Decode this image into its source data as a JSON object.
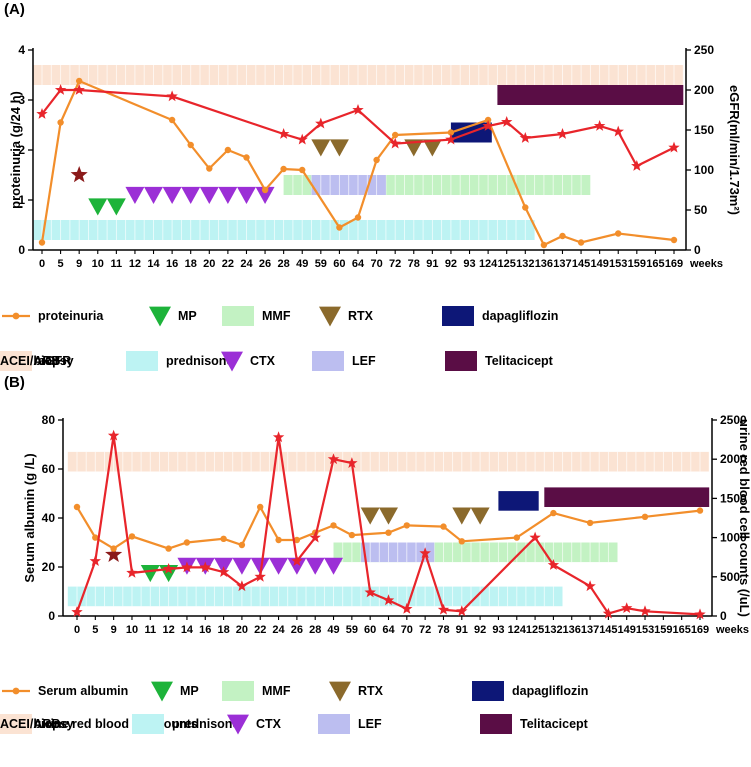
{
  "figure": {
    "panel_a_label": "(A)",
    "panel_b_label": "(B)",
    "x_unit_label": "weeks",
    "colors": {
      "proteinuria": "#f28e2b",
      "egfr": "#e8252b",
      "urine_rbc": "#e8252b",
      "albumin": "#f28e2b",
      "mp": "#1db33a",
      "ctx": "#9b2fd6",
      "rtx": "#8b6a2c",
      "renal_biopsy": "#8b1a1a",
      "prednisone": "#bdf3f3",
      "mmf": "#c3f2c3",
      "lef": "#bcbef0",
      "dapagliflozin": "#0d1777",
      "telitacicept": "#5a0d45",
      "acei_arb": "#fbe3d3"
    }
  },
  "chart_data": [
    {
      "type": "line",
      "panel": "A",
      "categories": [
        "0",
        "5",
        "9",
        "10",
        "11",
        "12",
        "14",
        "16",
        "18",
        "20",
        "22",
        "24",
        "26",
        "28",
        "49",
        "59",
        "60",
        "64",
        "70",
        "72",
        "78",
        "91",
        "92",
        "93",
        "124",
        "125",
        "132",
        "136",
        "137",
        "145",
        "149",
        "153",
        "159",
        "165",
        "169"
      ],
      "xlabel": "weeks",
      "ylabel": "proteinuria (g/24 h)",
      "y2label": "eGFR(ml/min/1.73m²)",
      "ylim": [
        0,
        4
      ],
      "y2lim": [
        0,
        250
      ],
      "yticks": [
        0,
        1,
        2,
        3,
        4
      ],
      "y2ticks": [
        0,
        50,
        100,
        150,
        200,
        250
      ],
      "series": [
        {
          "name": "proteinuria",
          "axis": "left",
          "marker": "dot",
          "points": [
            [
              0,
              0.15
            ],
            [
              1,
              2.55
            ],
            [
              2,
              3.38
            ],
            [
              7,
              2.6
            ],
            [
              8,
              2.1
            ],
            [
              9,
              1.63
            ],
            [
              10,
              2.0
            ],
            [
              11,
              1.85
            ],
            [
              12,
              1.2
            ],
            [
              13,
              1.62
            ],
            [
              14,
              1.6
            ],
            [
              16,
              0.45
            ],
            [
              17,
              0.65
            ],
            [
              18,
              1.8
            ],
            [
              19,
              2.3
            ],
            [
              22,
              2.35
            ],
            [
              24,
              2.6
            ],
            [
              26,
              0.85
            ],
            [
              27,
              0.1
            ],
            [
              28,
              0.28
            ],
            [
              29,
              0.15
            ],
            [
              31,
              0.33
            ],
            [
              34,
              0.2
            ]
          ]
        },
        {
          "name": "eGFR",
          "axis": "right",
          "marker": "star",
          "points": [
            [
              0,
              170
            ],
            [
              1,
              200
            ],
            [
              2,
              200
            ],
            [
              7,
              192
            ],
            [
              13,
              145
            ],
            [
              14,
              138
            ],
            [
              15,
              158
            ],
            [
              17,
              175
            ],
            [
              19,
              133
            ],
            [
              22,
              138
            ],
            [
              24,
              155
            ],
            [
              25,
              160
            ],
            [
              26,
              140
            ],
            [
              28,
              145
            ],
            [
              30,
              155
            ],
            [
              31,
              148
            ],
            [
              32,
              105
            ],
            [
              34,
              128
            ]
          ]
        }
      ],
      "events": [
        {
          "name": "renal biopsy",
          "marker": "star",
          "at": 2,
          "value": 1.5
        },
        {
          "name": "MP",
          "marker": "triangle-down",
          "at": [
            3,
            4
          ],
          "value": 0.87
        },
        {
          "name": "CTX",
          "marker": "triangle-down",
          "at": [
            5,
            6,
            7,
            8,
            9,
            10,
            11,
            12
          ],
          "value": 1.1
        },
        {
          "name": "RTX",
          "marker": "triangle-down",
          "at": [
            15,
            16,
            20,
            21
          ],
          "value": 2.05
        }
      ],
      "treatment_bars": [
        {
          "name": "prednisone",
          "from": -0.5,
          "to": 26.5,
          "y": [
            0.2,
            0.6
          ]
        },
        {
          "name": "MMF",
          "from": 13,
          "to": 29.5,
          "y": [
            1.1,
            1.5
          ]
        },
        {
          "name": "LEF",
          "from": 14.5,
          "to": 18.5,
          "y": [
            1.1,
            1.5
          ]
        },
        {
          "name": "dapagliflozin",
          "from": 22,
          "to": 24.2,
          "y": [
            2.15,
            2.55
          ]
        },
        {
          "name": "Telitacicept",
          "from": 24.5,
          "to": 34.5,
          "y": [
            2.9,
            3.3
          ]
        },
        {
          "name": "ACEI/ARB",
          "from": -0.5,
          "to": 34.5,
          "y": [
            3.3,
            3.7
          ]
        }
      ],
      "legend": [
        {
          "key": "proteinuria",
          "label": "proteinuria",
          "symbol": "line-dot"
        },
        {
          "key": "mp",
          "label": "MP",
          "symbol": "triangle"
        },
        {
          "key": "mmf",
          "label": "MMF",
          "symbol": "box"
        },
        {
          "key": "rtx",
          "label": "RTX",
          "symbol": "triangle"
        },
        {
          "key": "dapagliflozin",
          "label": "dapagliflozin",
          "symbol": "box"
        },
        {
          "key": "egfr",
          "label": "eGFR",
          "symbol": "line-star"
        },
        {
          "key": "prednisone",
          "label": "prednisone",
          "symbol": "box"
        },
        {
          "key": "ctx",
          "label": "CTX",
          "symbol": "triangle"
        },
        {
          "key": "lef",
          "label": "LEF",
          "symbol": "box"
        },
        {
          "key": "telitacicept",
          "label": "Telitacicept",
          "symbol": "box"
        },
        {
          "key": "renal_biopsy",
          "label": "renal biopsy",
          "symbol": "star"
        },
        {
          "key": "acei_arb",
          "label": "ACEI/ARB",
          "symbol": "box"
        }
      ]
    },
    {
      "type": "line",
      "panel": "B",
      "categories": [
        "0",
        "5",
        "9",
        "10",
        "11",
        "12",
        "14",
        "16",
        "18",
        "20",
        "22",
        "24",
        "26",
        "28",
        "49",
        "59",
        "60",
        "64",
        "70",
        "72",
        "78",
        "91",
        "92",
        "93",
        "124",
        "125",
        "132",
        "136",
        "137",
        "145",
        "149",
        "153",
        "159",
        "165",
        "169"
      ],
      "xlabel": "weeks",
      "ylabel": "Serum albumin (g /L)",
      "y2label": "urine red blood cell counts (/uL)",
      "ylim": [
        0,
        80
      ],
      "y2lim": [
        0,
        2500
      ],
      "yticks": [
        0,
        20,
        40,
        60,
        80
      ],
      "y2ticks": [
        0,
        500,
        1000,
        1500,
        2000,
        2500
      ],
      "series": [
        {
          "name": "Serum albumin",
          "axis": "left",
          "marker": "dot",
          "points": [
            [
              0,
              44.5
            ],
            [
              1,
              32
            ],
            [
              2,
              27.5
            ],
            [
              3,
              32.5
            ],
            [
              5,
              27.5
            ],
            [
              6,
              30
            ],
            [
              8,
              31.5
            ],
            [
              9,
              29
            ],
            [
              10,
              44.5
            ],
            [
              11,
              31
            ],
            [
              12,
              31
            ],
            [
              13,
              34
            ],
            [
              14,
              37
            ],
            [
              15,
              33
            ],
            [
              17,
              34
            ],
            [
              18,
              37
            ],
            [
              20,
              36.5
            ],
            [
              21,
              30.5
            ],
            [
              24,
              32
            ],
            [
              26,
              42
            ],
            [
              28,
              38
            ],
            [
              31,
              40.5
            ],
            [
              34,
              43
            ]
          ]
        },
        {
          "name": "urine red blood cell counts",
          "axis": "right",
          "marker": "star",
          "points": [
            [
              0,
              50
            ],
            [
              1,
              700
            ],
            [
              2,
              2300
            ],
            [
              3,
              550
            ],
            [
              5,
              600
            ],
            [
              6,
              620
            ],
            [
              7,
              620
            ],
            [
              8,
              560
            ],
            [
              9,
              380
            ],
            [
              10,
              500
            ],
            [
              11,
              2280
            ],
            [
              12,
              700
            ],
            [
              13,
              1000
            ],
            [
              14,
              2000
            ],
            [
              15,
              1950
            ],
            [
              16,
              300
            ],
            [
              17,
              200
            ],
            [
              18,
              90
            ],
            [
              19,
              800
            ],
            [
              20,
              80
            ],
            [
              21,
              60
            ],
            [
              25,
              1000
            ],
            [
              26,
              650
            ],
            [
              28,
              380
            ],
            [
              29,
              30
            ],
            [
              30,
              100
            ],
            [
              31,
              60
            ],
            [
              34,
              20
            ]
          ]
        }
      ],
      "events": [
        {
          "name": "renal biopsy",
          "marker": "star",
          "at": 2,
          "value": 25
        },
        {
          "name": "MP",
          "marker": "triangle-down",
          "at": [
            4,
            5
          ],
          "value": 17.5
        },
        {
          "name": "CTX",
          "marker": "triangle-down",
          "at": [
            6,
            7,
            8,
            9,
            10,
            11,
            12,
            13,
            14
          ],
          "value": 20.5
        },
        {
          "name": "RTX",
          "marker": "triangle-down",
          "at": [
            16,
            17,
            21,
            22
          ],
          "value": 41
        }
      ],
      "treatment_bars": [
        {
          "name": "prednisone",
          "from": -0.5,
          "to": 26.5,
          "y": [
            4,
            12
          ]
        },
        {
          "name": "MMF",
          "from": 14,
          "to": 29.5,
          "y": [
            22,
            30
          ]
        },
        {
          "name": "LEF",
          "from": 15.5,
          "to": 19.5,
          "y": [
            22,
            30
          ]
        },
        {
          "name": "dapagliflozin",
          "from": 23,
          "to": 25.2,
          "y": [
            43,
            51
          ]
        },
        {
          "name": "Telitacicept",
          "from": 25.5,
          "to": 34.5,
          "y": [
            44.5,
            52.5
          ]
        },
        {
          "name": "ACEI/ARB",
          "from": -0.5,
          "to": 34.5,
          "y": [
            59,
            67
          ]
        }
      ],
      "legend": [
        {
          "key": "albumin",
          "label": "Serum albumin",
          "symbol": "line-dot"
        },
        {
          "key": "mp",
          "label": "MP",
          "symbol": "triangle"
        },
        {
          "key": "mmf",
          "label": "MMF",
          "symbol": "box"
        },
        {
          "key": "rtx",
          "label": "RTX",
          "symbol": "triangle"
        },
        {
          "key": "dapagliflozin",
          "label": "dapagliflozin",
          "symbol": "box"
        },
        {
          "key": "urine_rbc",
          "label": "urine red blood cell counts",
          "symbol": "line-star"
        },
        {
          "key": "prednisone",
          "label": "prednisone",
          "symbol": "box"
        },
        {
          "key": "ctx",
          "label": "CTX",
          "symbol": "triangle"
        },
        {
          "key": "lef",
          "label": "LEF",
          "symbol": "box"
        },
        {
          "key": "telitacicept",
          "label": "Telitacicept",
          "symbol": "box"
        },
        {
          "key": "renal_biopsy",
          "label": "renal biopsy",
          "symbol": "star"
        },
        {
          "key": "acei_arb",
          "label": "ACEI/ARB",
          "symbol": "box"
        }
      ]
    }
  ]
}
